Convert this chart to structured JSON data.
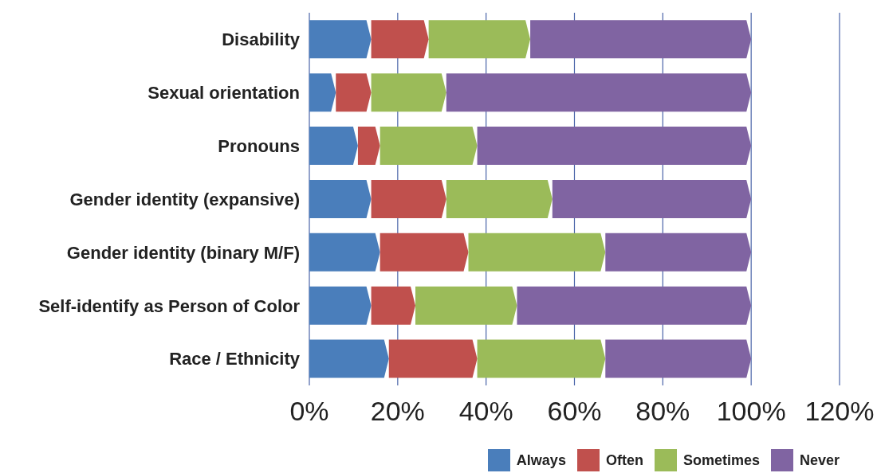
{
  "chart_data": {
    "type": "bar",
    "orientation": "horizontal",
    "stacked": true,
    "categories": [
      "Disability",
      "Sexual orientation",
      "Pronouns",
      "Gender identity (expansive)",
      "Gender identity (binary M/F)",
      "Self-identify as Person of Color",
      "Race / Ethnicity"
    ],
    "series": [
      {
        "name": "Always",
        "color": "#4a7ebb",
        "values": [
          14,
          6,
          11,
          14,
          16,
          14,
          18
        ]
      },
      {
        "name": "Often",
        "color": "#c0504d",
        "values": [
          13,
          8,
          5,
          17,
          20,
          10,
          20
        ]
      },
      {
        "name": "Sometimes",
        "color": "#9bbb59",
        "values": [
          23,
          17,
          22,
          24,
          31,
          23,
          29
        ]
      },
      {
        "name": "Never",
        "color": "#8064a2",
        "values": [
          50,
          69,
          62,
          45,
          33,
          53,
          33
        ]
      }
    ],
    "xlim": [
      0,
      120
    ],
    "xticks": [
      {
        "value": 0,
        "label": "0%"
      },
      {
        "value": 20,
        "label": "20%"
      },
      {
        "value": 40,
        "label": "40%"
      },
      {
        "value": 60,
        "label": "60%"
      },
      {
        "value": 80,
        "label": "80%"
      },
      {
        "value": 100,
        "label": "100%"
      },
      {
        "value": 120,
        "label": "120%"
      }
    ],
    "grid": "x",
    "legend": "bottom right"
  }
}
